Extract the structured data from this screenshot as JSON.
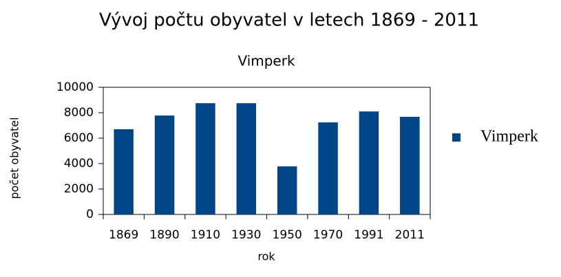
{
  "chart_data": {
    "type": "bar",
    "title": "Vývoj počtu obyvatel v letech 1869 - 2011",
    "subtitle": "Vimperk",
    "x_label": "rok",
    "y_label": "počet obyvatel",
    "categories": [
      "1869",
      "1890",
      "1910",
      "1930",
      "1950",
      "1970",
      "1991",
      "2011"
    ],
    "series": [
      {
        "name": "Vimperk",
        "color": "#004586",
        "values": [
          6700,
          7780,
          8750,
          8750,
          3780,
          7240,
          8100,
          7680
        ]
      }
    ],
    "ylim": [
      0,
      10000
    ],
    "yticks": [
      0,
      2000,
      4000,
      6000,
      8000,
      10000
    ],
    "grid": false,
    "legend": "right"
  }
}
